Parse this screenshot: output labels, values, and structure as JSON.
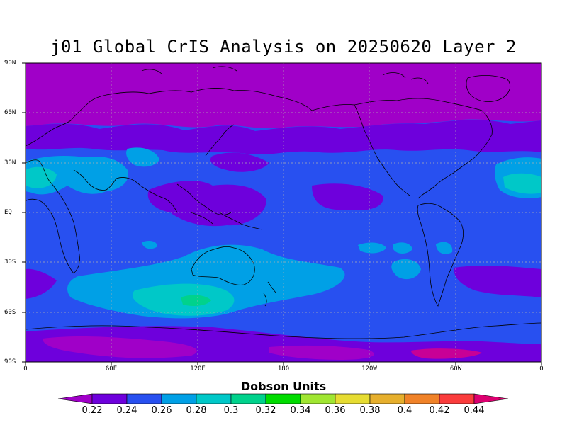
{
  "title": "j01 Global CrIS Analysis on 20250620 Layer 2",
  "units_label": "Dobson Units",
  "lat_ticks": [
    "90N",
    "60N",
    "30N",
    "EQ",
    "30S",
    "60S",
    "90S"
  ],
  "lon_ticks": [
    "0",
    "60E",
    "120E",
    "180",
    "120W",
    "60W",
    "0"
  ],
  "colorbar": {
    "labels": [
      "0.22",
      "0.24",
      "0.26",
      "0.28",
      "0.3",
      "0.32",
      "0.34",
      "0.36",
      "0.38",
      "0.4",
      "0.42",
      "0.44"
    ],
    "colors": [
      "#a000c8",
      "#6e00dc",
      "#2850f0",
      "#00a0e6",
      "#00c8c8",
      "#00d28c",
      "#00dc00",
      "#a0e632",
      "#e6dc32",
      "#e6af2d",
      "#f08228",
      "#fa3c3c",
      "#dc0070"
    ]
  },
  "fill_colors": {
    "low": "#a000c8",
    "mid_low": "#6e00dc",
    "mid": "#2850f0",
    "high": "#00a0e6",
    "higher": "#00c8c8",
    "highest": "#00d28c",
    "peak": "#e6007a"
  }
}
